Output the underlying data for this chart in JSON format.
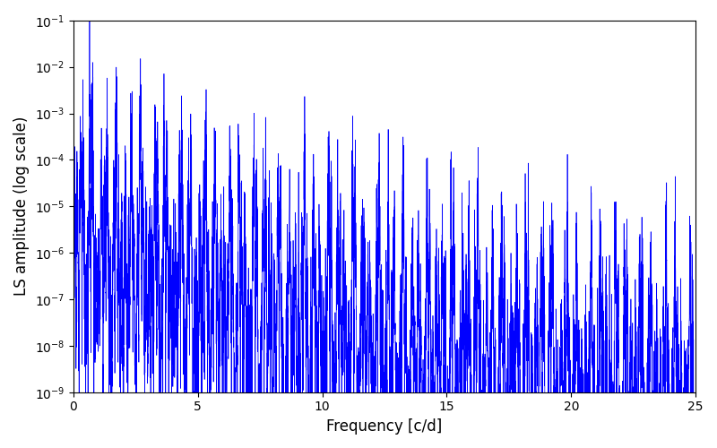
{
  "line_color": "#0000ff",
  "xlabel": "Frequency [c/d]",
  "ylabel": "LS amplitude (log scale)",
  "xlim": [
    0,
    25
  ],
  "ylim": [
    1e-09,
    0.1
  ],
  "freq_min": 0.0,
  "freq_max": 25.0,
  "n_points": 8000,
  "background_color": "#ffffff",
  "linewidth": 0.5
}
